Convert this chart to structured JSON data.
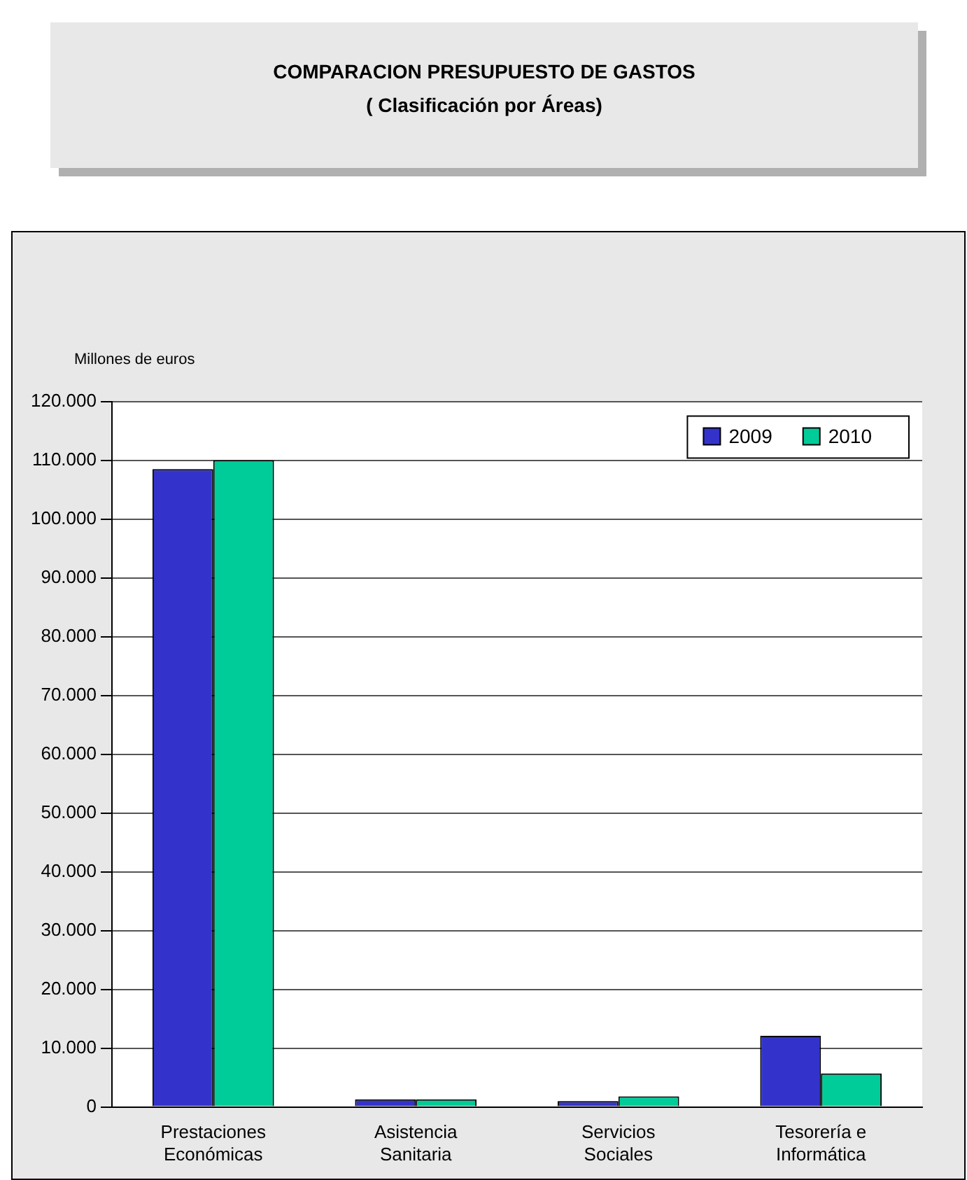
{
  "chart_data": {
    "type": "bar",
    "title": "COMPARACION PRESUPUESTO DE GASTOS",
    "subtitle": "( Clasificación por Áreas)",
    "ylabel": "Millones de euros",
    "categories": [
      [
        "Prestaciones",
        "Económicas"
      ],
      [
        "Asistencia",
        "Sanitaria"
      ],
      [
        "Servicios",
        "Sociales"
      ],
      [
        "Tesorería e",
        "Informática"
      ]
    ],
    "series": [
      {
        "name": "2009",
        "color": "#3333cc",
        "values": [
          108500,
          1300,
          1000,
          12100
        ]
      },
      {
        "name": "2010",
        "color": "#00cc99",
        "values": [
          110000,
          1300,
          1800,
          5700
        ]
      }
    ],
    "ylim": [
      0,
      120000
    ],
    "yticks": [
      {
        "value": 0,
        "label": "0"
      },
      {
        "value": 10000,
        "label": "10.000"
      },
      {
        "value": 20000,
        "label": "20.000"
      },
      {
        "value": 30000,
        "label": "30.000"
      },
      {
        "value": 40000,
        "label": "40.000"
      },
      {
        "value": 50000,
        "label": "50.000"
      },
      {
        "value": 60000,
        "label": "60.000"
      },
      {
        "value": 70000,
        "label": "70.000"
      },
      {
        "value": 80000,
        "label": "80.000"
      },
      {
        "value": 90000,
        "label": "90.000"
      },
      {
        "value": 100000,
        "label": "100.000"
      },
      {
        "value": 110000,
        "label": "110.000"
      },
      {
        "value": 120000,
        "label": "120.000"
      }
    ],
    "grid": "y",
    "legend": "top right"
  }
}
